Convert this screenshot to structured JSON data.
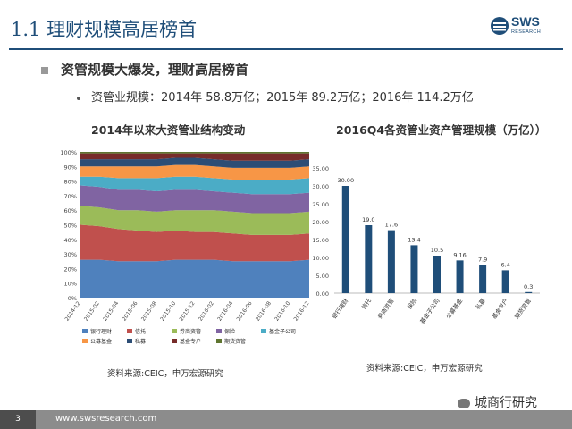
{
  "slide": {
    "title": "1.1 理财规模高居榜首",
    "logo_text": "SWS",
    "logo_sub": "RESEARCH",
    "bullet_main": "资管规模大爆发，理财高居榜首",
    "bullet_sub": "资管业规模：2014年  58.8万亿；2015年  89.2万亿；2016年   114.2万亿",
    "page_number": "3",
    "footer_url": "www.swsresearch.com",
    "watermark": "城商行研究"
  },
  "colors": {
    "title": "#1f4e79",
    "footer_bar": "#8c8c8c",
    "bar": "#1f4e79"
  },
  "chart_data": [
    {
      "type": "area",
      "stacked": true,
      "title": "2014年以来大资管业结构变动",
      "ylim": [
        0,
        100
      ],
      "y_unit": "%",
      "yticks": [
        "0%",
        "10%",
        "20%",
        "30%",
        "40%",
        "50%",
        "60%",
        "70%",
        "80%",
        "90%",
        "100%"
      ],
      "x": [
        "2014-12",
        "2015-02",
        "2015-04",
        "2015-06",
        "2015-08",
        "2015-10",
        "2015-12",
        "2016-02",
        "2016-04",
        "2016-06",
        "2016-08",
        "2016-10",
        "2016-12"
      ],
      "series": [
        {
          "name": "银行理财",
          "color": "#4f81bd",
          "values": [
            26,
            26,
            25,
            25,
            25,
            26,
            26,
            26,
            25,
            25,
            25,
            25,
            26
          ]
        },
        {
          "name": "信托",
          "color": "#c0504d",
          "values": [
            24,
            23,
            22,
            21,
            20,
            20,
            19,
            19,
            19,
            18,
            18,
            18,
            18
          ]
        },
        {
          "name": "券商资管",
          "color": "#9bbb59",
          "values": [
            13,
            13,
            13,
            14,
            14,
            14,
            15,
            15,
            15,
            15,
            15,
            15,
            15
          ]
        },
        {
          "name": "保险",
          "color": "#8064a2",
          "values": [
            14,
            14,
            14,
            14,
            14,
            14,
            14,
            13,
            13,
            13,
            13,
            13,
            13
          ]
        },
        {
          "name": "基金子公司",
          "color": "#4bacc6",
          "values": [
            6,
            7,
            8,
            8,
            9,
            9,
            9,
            9,
            9,
            10,
            10,
            10,
            10
          ]
        },
        {
          "name": "公募基金",
          "color": "#f79646",
          "values": [
            7,
            7,
            8,
            8,
            8,
            8,
            8,
            8,
            8,
            8,
            8,
            8,
            8
          ]
        },
        {
          "name": "私募",
          "color": "#2c4d75",
          "values": [
            5,
            5,
            5,
            5,
            5,
            5,
            5,
            5,
            5,
            5,
            5,
            5,
            5
          ]
        },
        {
          "name": "基金专户",
          "color": "#772c2a",
          "values": [
            4,
            4,
            4,
            4,
            4,
            3,
            3,
            4,
            5,
            5,
            5,
            5,
            4
          ]
        },
        {
          "name": "期货资管",
          "color": "#5f7530",
          "values": [
            1,
            1,
            1,
            1,
            1,
            1,
            1,
            1,
            1,
            1,
            1,
            1,
            1
          ]
        }
      ],
      "source": "资料来源:CEIC，申万宏源研究"
    },
    {
      "type": "bar",
      "title": "2016Q4各资管业资产管理规模（万亿））",
      "ylim": [
        0,
        35
      ],
      "yticks": [
        "0.00",
        "5.00",
        "10.00",
        "15.00",
        "20.00",
        "25.00",
        "30.00",
        "35.00"
      ],
      "categories": [
        "银行理财",
        "信托",
        "券商资管",
        "保险",
        "基金子公司",
        "公募基金",
        "私募",
        "基金专户",
        "期货资管"
      ],
      "values": [
        30.0,
        19.0,
        17.6,
        13.4,
        10.5,
        9.16,
        7.9,
        6.4,
        0.3
      ],
      "value_labels": [
        "30.00",
        "19.0",
        "17.6",
        "13.4",
        "10.5",
        "9.16",
        "7.9",
        "6.4",
        "0.3"
      ],
      "source": "资料来源:CEIC，申万宏源研究"
    }
  ]
}
